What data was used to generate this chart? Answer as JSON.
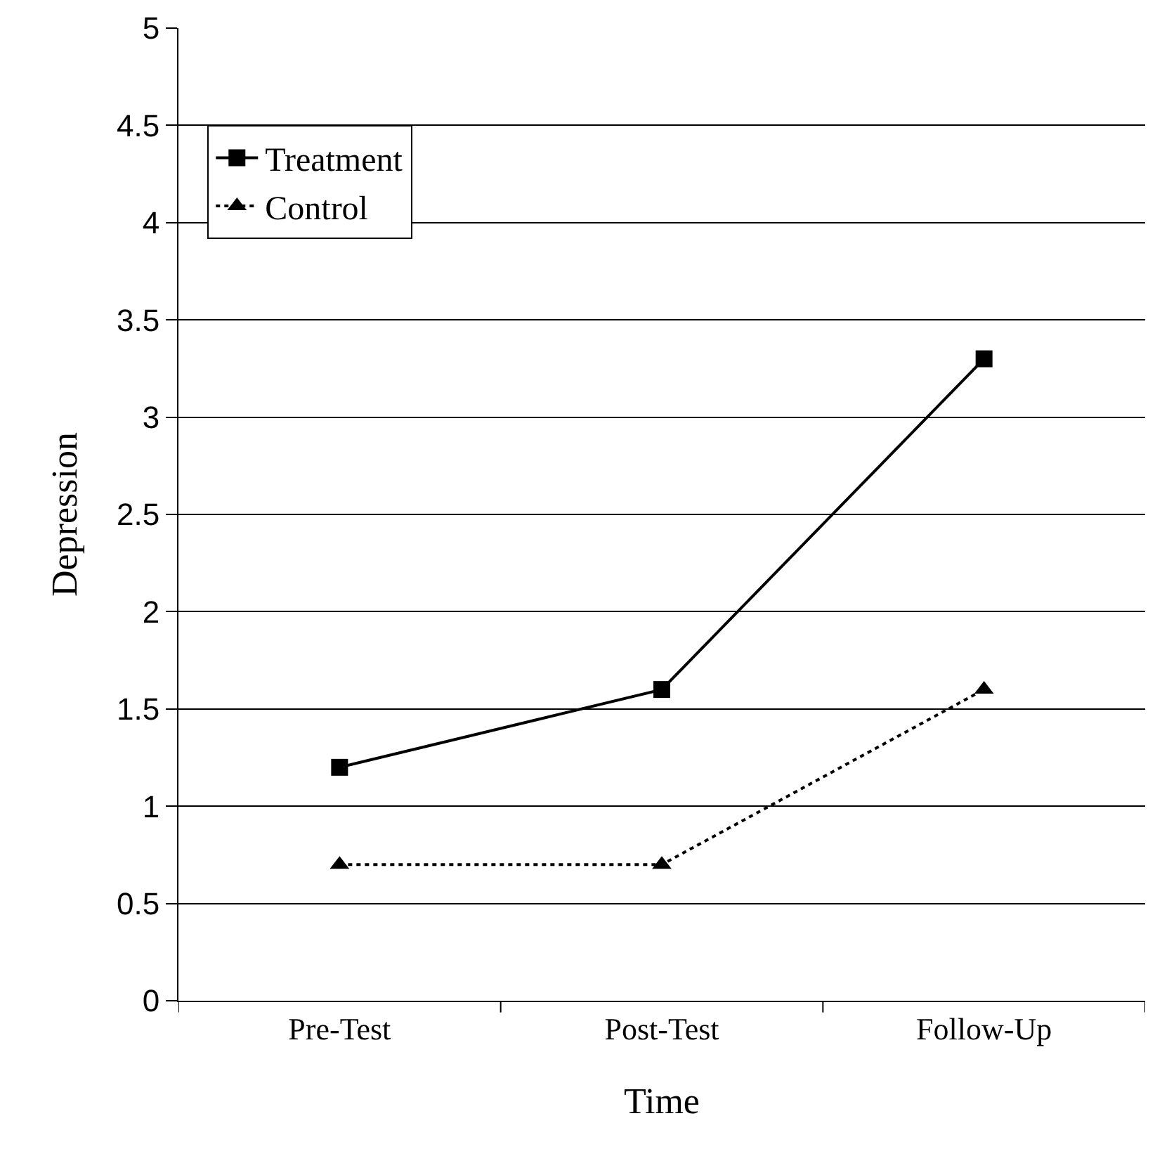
{
  "chart_data": {
    "type": "line",
    "xlabel": "Time",
    "ylabel": "Depression",
    "categories": [
      "Pre-Test",
      "Post-Test",
      "Follow-Up"
    ],
    "series": [
      {
        "name": "Treatment",
        "color": "#000000",
        "values": [
          1.2,
          1.6,
          3.3
        ],
        "marker": "square",
        "line_style": "solid"
      },
      {
        "name": "Control",
        "color": "#000000",
        "values": [
          0.7,
          0.7,
          1.6
        ],
        "marker": "triangle",
        "line_style": "dotted"
      }
    ],
    "ylim": [
      0,
      5
    ],
    "yticks": [
      0,
      0.5,
      1,
      1.5,
      2,
      2.5,
      3,
      3.5,
      4,
      4.5,
      5
    ],
    "grid": "y",
    "legend": "top left"
  }
}
